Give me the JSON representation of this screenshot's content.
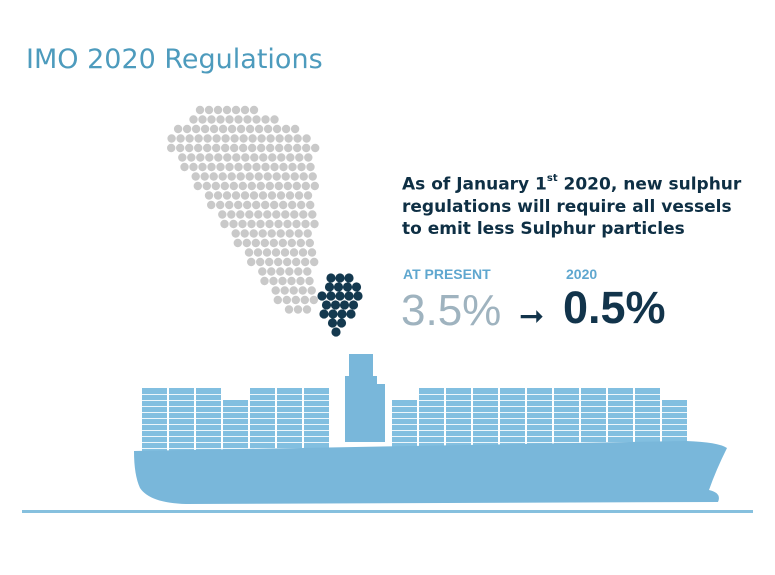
{
  "title": "IMO 2020 Regulations",
  "description": {
    "line1_a": "As of January 1",
    "line1_sup": "st",
    "line1_b": " 2020, new sulphur",
    "line2": "regulations will require all vessels",
    "line3": "to emit less Sulphur particles"
  },
  "present": {
    "label": "AT PRESENT",
    "value": "3.5%"
  },
  "future": {
    "label": "2020",
    "value": "0.5%"
  },
  "arrow_glyph": "➞",
  "colors": {
    "title": "#4d9bbd",
    "ship": "#79b7da",
    "containers": "#82bfe0",
    "smoke_grey": "#c9c9c9",
    "smoke_dark": "#14394f",
    "text_dark": "#0e2f44",
    "present_value": "#9fb3bf"
  }
}
